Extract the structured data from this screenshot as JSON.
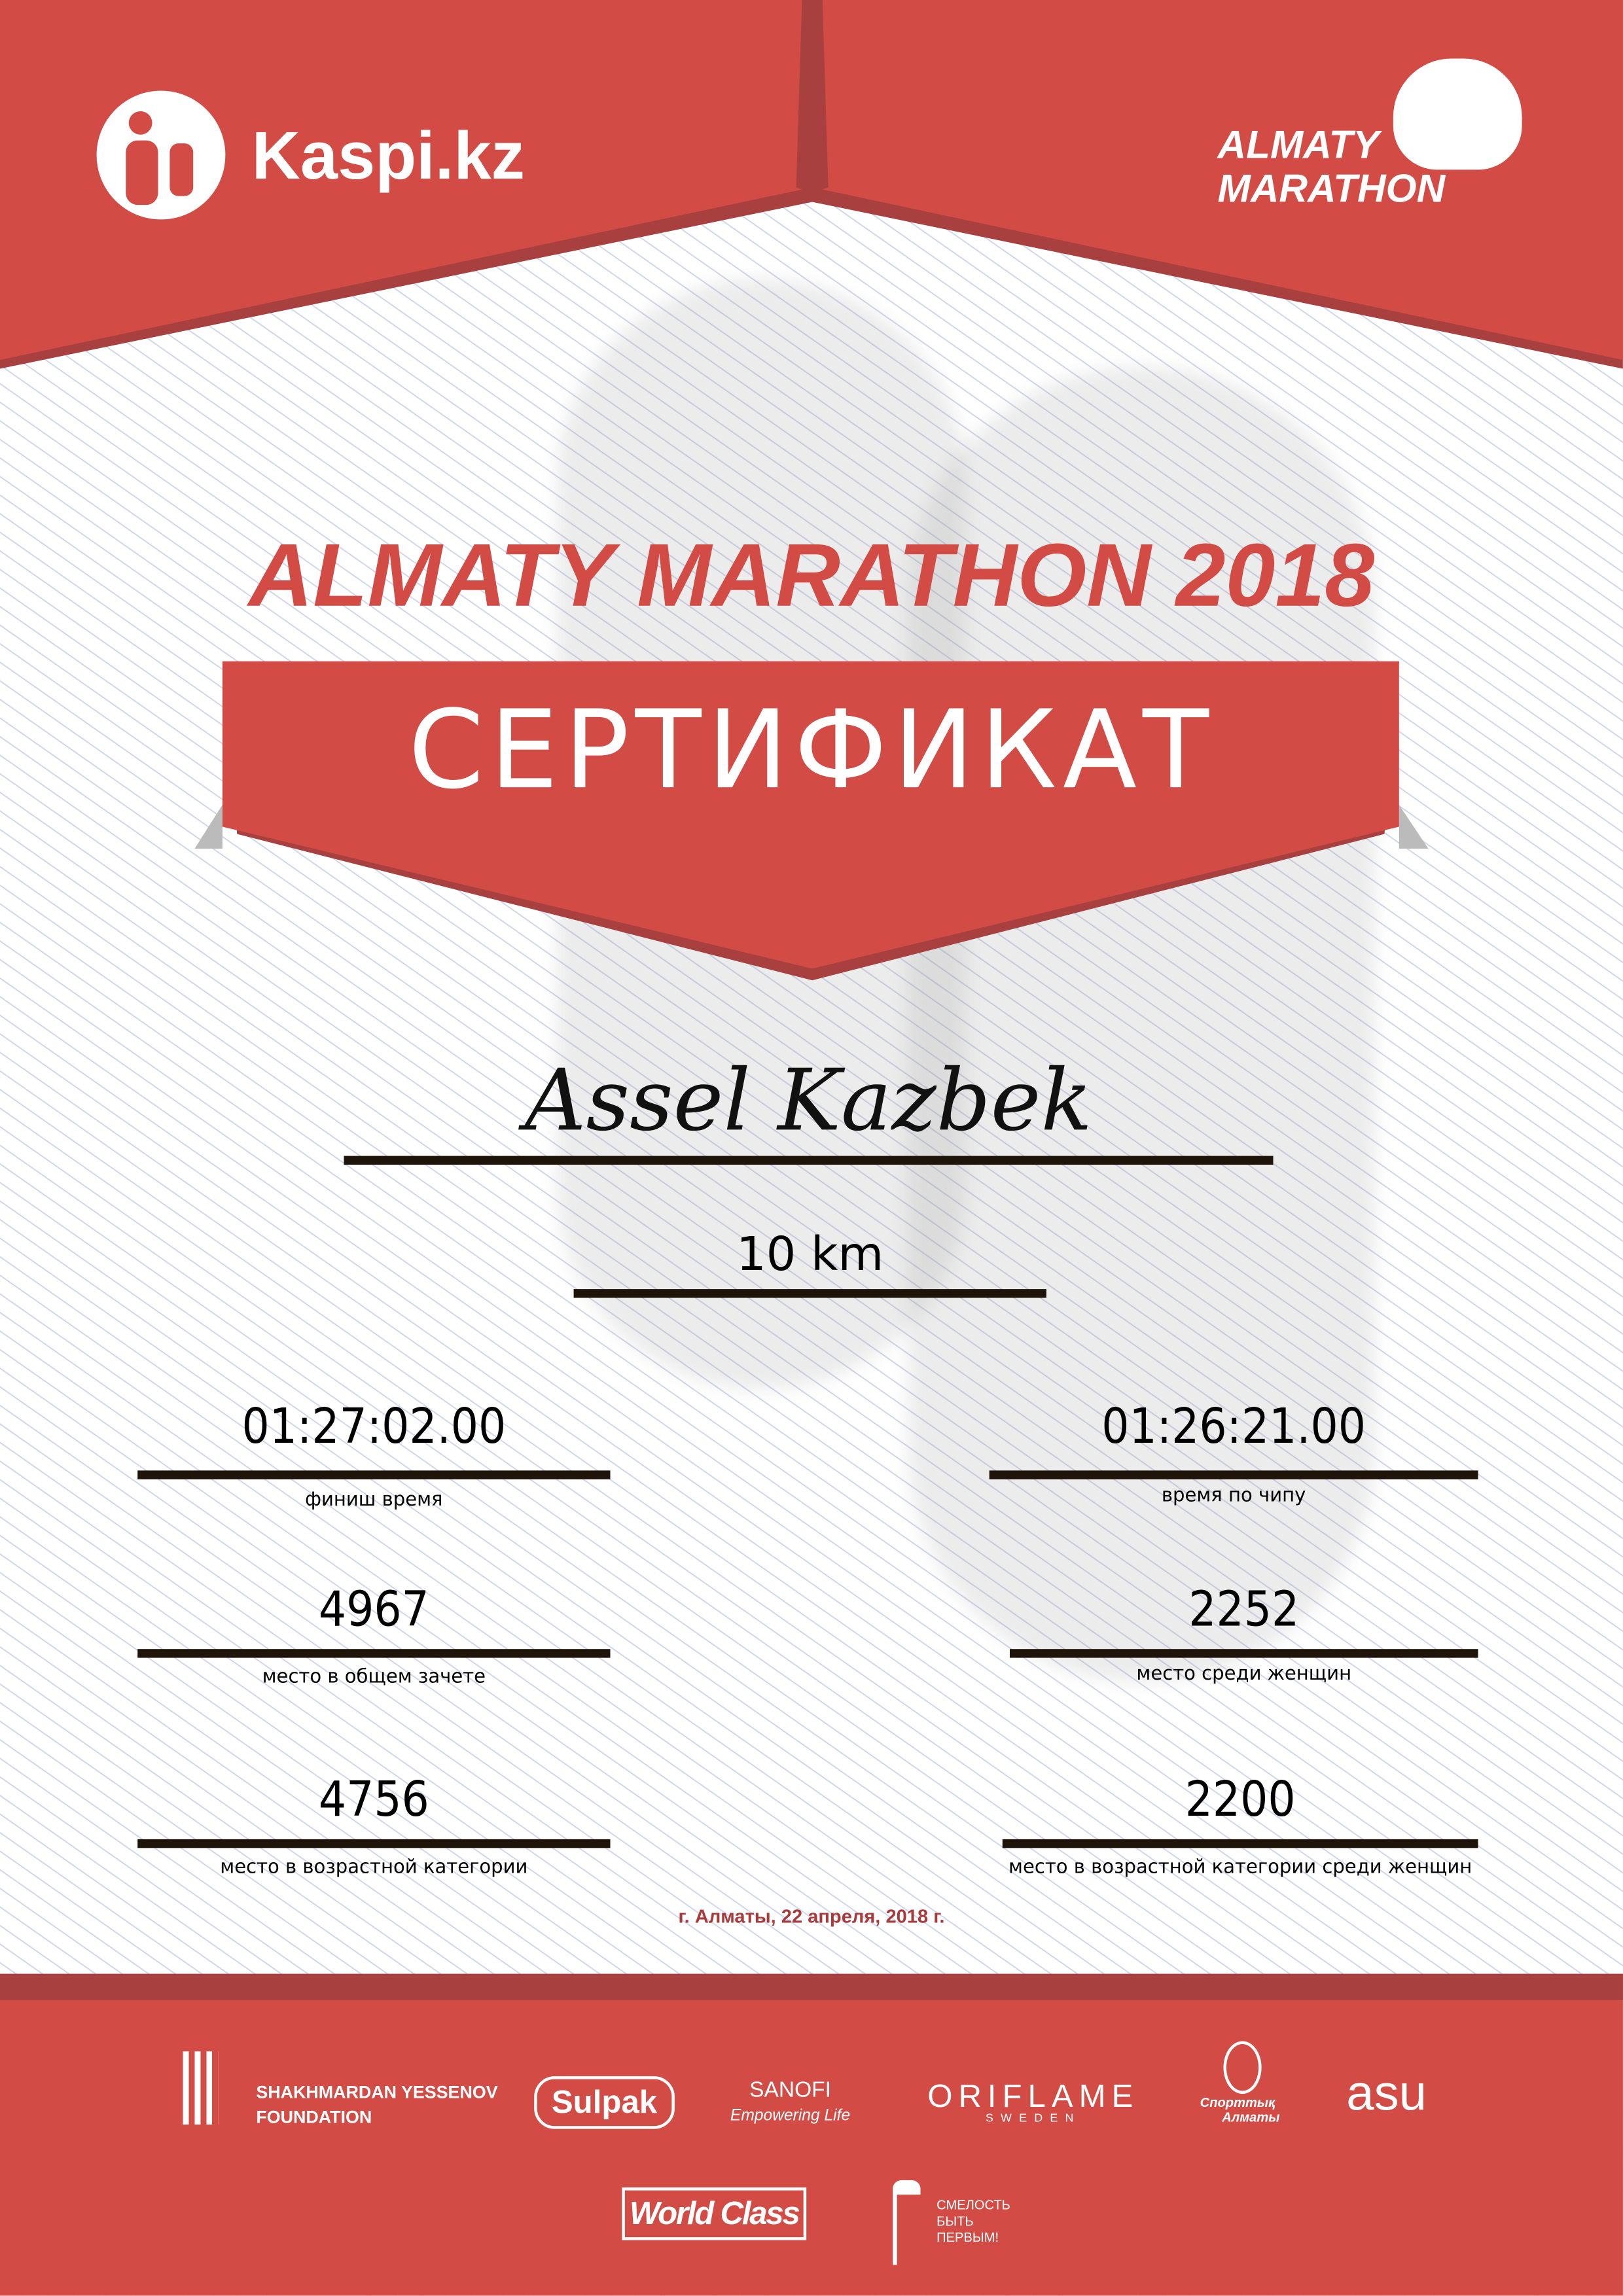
{
  "header": {
    "kaspi_logo": "Kaspi.kz",
    "event_logo": [
      "ALMATY",
      "MARATHON"
    ]
  },
  "title": "ALMATY MARATHON 2018",
  "banner": "СЕРТИФИКАТ",
  "participant": {
    "name": "Assel Kazbek",
    "distance": "10 km"
  },
  "results": [
    {
      "value": "01:27:02.00",
      "label": "финиш время"
    },
    {
      "value": "01:26:21.00",
      "label": "время по чипу"
    },
    {
      "value": "4967",
      "label": "место в общем зачете"
    },
    {
      "value": "2252",
      "label": "место среди женщин"
    },
    {
      "value": "4756",
      "label": "место в возрастной категории"
    },
    {
      "value": "2200",
      "label": "место в возрастной категории среди женщин"
    }
  ],
  "date_place": "г. Алматы, 22 апреля, 2018 г.",
  "sponsors": {
    "yessenov": [
      "SHAKHMARDAN YESSENOV",
      "FOUNDATION"
    ],
    "sulpak": "Sulpak",
    "sanofi": [
      "SANOFI",
      "Empowering Life"
    ],
    "oriflame": [
      "ORIFLAME",
      "SWEDEN"
    ],
    "sportivnoe_almaty": [
      "Спорттық",
      "Алматы"
    ],
    "asu": "asu",
    "worldclass": "World Class",
    "fund": [
      "СМЕЛОСТЬ",
      "БЫТЬ",
      "ПЕРВЫМ!"
    ]
  },
  "colors": {
    "brand_red": "#d34b45",
    "dark_red": "#a84040",
    "date_red": "#a83a3a"
  }
}
